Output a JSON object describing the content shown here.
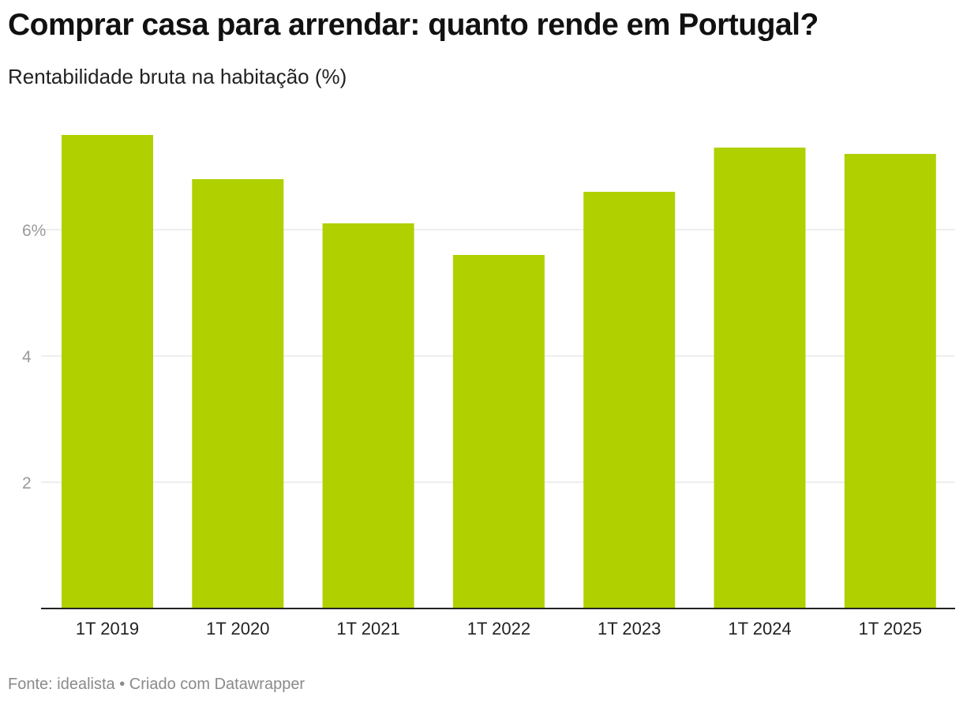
{
  "header": {
    "title": "Comprar casa para arrendar: quanto rende em Portugal?",
    "subtitle": "Rentabilidade bruta na habitação (%)"
  },
  "footer": {
    "source": "Fonte: idealista",
    "separator": "•",
    "credit": "Criado com Datawrapper"
  },
  "colors": {
    "bar": "#b0d000",
    "grid": "#dcdcdc",
    "axis": "#222222"
  },
  "chart_data": {
    "type": "bar",
    "title": "Comprar casa para arrendar: quanto rende em Portugal?",
    "subtitle": "Rentabilidade bruta na habitação (%)",
    "categories": [
      "1T 2019",
      "1T 2020",
      "1T 2021",
      "1T 2022",
      "1T 2023",
      "1T 2024",
      "1T 2025"
    ],
    "values": [
      7.5,
      6.8,
      6.1,
      5.6,
      6.6,
      7.3,
      7.2
    ],
    "yticks": [
      {
        "value": 2,
        "label": "2"
      },
      {
        "value": 4,
        "label": "4"
      },
      {
        "value": 6,
        "label": "6%"
      }
    ],
    "ylim": [
      0,
      9.6
    ],
    "xlabel": "",
    "ylabel": "",
    "grid": true,
    "legend": "none"
  }
}
